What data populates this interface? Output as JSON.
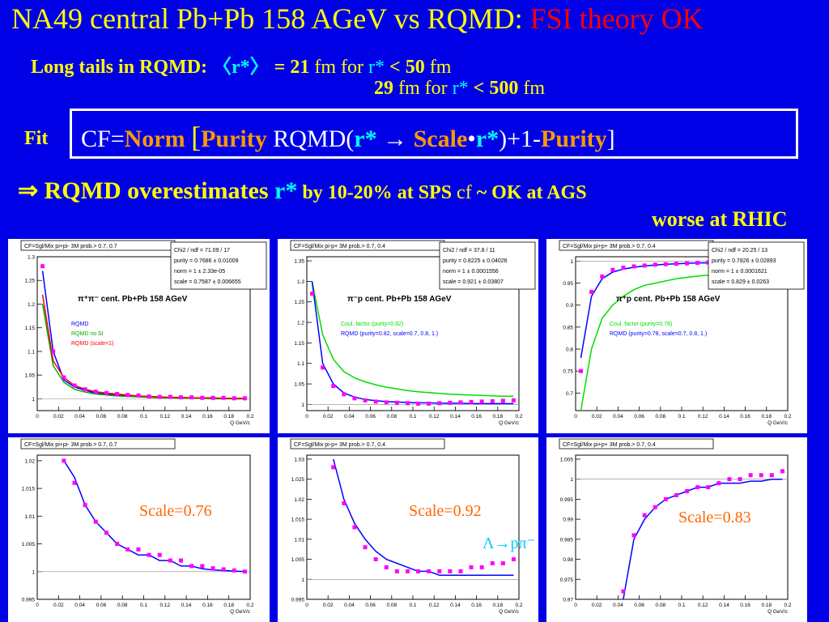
{
  "header": {
    "title_main": "NA49 central Pb+Pb 158 AGeV vs RQMD:",
    "title_fsi": "FSI theory OK",
    "tails_prefix": "Long  tails in RQMD:",
    "tails_mean": "〈r*〉",
    "tails_eq": "= 21",
    "tails_unit": "fm  for",
    "tails_r": "r*",
    "tails_lt": "< 50",
    "tails_fm": "fm",
    "line3_val": "29",
    "line3_for": "fm  for",
    "line3_r": "r*",
    "line3_lt": "< 500",
    "line3_fm": "fm",
    "fit_label": "Fit",
    "formula": {
      "cf": "CF=",
      "norm": "Norm",
      "lb": "[",
      "purity1": "Purity",
      "rqmd": " RQMD(",
      "r1": "r*",
      "arrow": " → ",
      "scale": "Scale",
      "dot": "•",
      "r2": "r*",
      "tail": ")+1-",
      "purity2": "Purity",
      "rb": "]"
    },
    "conclusion": {
      "arrow": "⇒",
      "text": " RQMD overestimates ",
      "r": "r*",
      "by": " by ",
      "pct": "10-20%",
      "at": " at ",
      "sps": "SPS",
      "cf": "  cf ",
      "tilde": " ~ OK",
      "at2": " at ",
      "ags": "AGS"
    },
    "conclusion2": {
      "worse": "worse",
      "at": " at ",
      "rhic": "RHIC"
    }
  },
  "chart_data": [
    {
      "type": "line",
      "panel_title": "CF=Sgl/Mix  pi+pi- 3M prob.> 0.7, 0.7",
      "stats": [
        "Chi2 / ndf = 71.09 / 17",
        "purity  = 0.7686 ± 0.01009",
        "norm   =    1 ± 2.33e-05",
        "scale  = 0.7587 ± 0.006655"
      ],
      "label": "π⁺π⁻  cent. Pb+Pb  158 AGeV",
      "legend": [
        "RQMD",
        "RQMD no SI",
        "RQMD (scale=1)"
      ],
      "xlabel": "Q  GeV/c",
      "xlim": [
        0,
        0.2
      ],
      "ylim": [
        0.975,
        1.3
      ],
      "x_ticks": [
        "0",
        "0.02",
        "0.04",
        "0.06",
        "0.08",
        "0.1",
        "0.12",
        "0.14",
        "0.16",
        "0.18",
        "0.2"
      ],
      "y_ticks": [
        "1",
        "1.05",
        "1.1",
        "1.15",
        "1.2",
        "1.25",
        "1.3"
      ],
      "x": [
        0.005,
        0.015,
        0.025,
        0.035,
        0.045,
        0.055,
        0.065,
        0.075,
        0.085,
        0.095,
        0.105,
        0.115,
        0.125,
        0.135,
        0.145,
        0.155,
        0.165,
        0.175,
        0.185,
        0.195
      ],
      "series": [
        {
          "name": "RQMD",
          "values": [
            1.27,
            1.1,
            1.04,
            1.025,
            1.018,
            1.012,
            1.01,
            1.008,
            1.006,
            1.005,
            1.004,
            1.003,
            1.002,
            1.002,
            1.001,
            1.001,
            1.001,
            1.001,
            1.0,
            1.0
          ]
        },
        {
          "name": "RQMD no SI",
          "values": [
            1.2,
            1.07,
            1.035,
            1.02,
            1.014,
            1.01,
            1.008,
            1.006,
            1.005,
            1.004,
            1.003,
            1.002,
            1.002,
            1.001,
            1.001,
            1.001,
            1.0,
            1.0,
            1.0,
            1.0
          ]
        },
        {
          "name": "RQMD (scale=1)",
          "values": [
            1.22,
            1.08,
            1.045,
            1.028,
            1.02,
            1.015,
            1.012,
            1.01,
            1.008,
            1.006,
            1.005,
            1.004,
            1.003,
            1.003,
            1.002,
            1.002,
            1.002,
            1.001,
            1.001,
            1.001
          ]
        },
        {
          "name": "data",
          "values": [
            1.28,
            1.1,
            1.045,
            1.028,
            1.02,
            1.015,
            1.012,
            1.01,
            1.008,
            1.007,
            1.005,
            1.004,
            1.004,
            1.003,
            1.003,
            1.002,
            1.002,
            1.002,
            1.001,
            1.001
          ]
        }
      ]
    },
    {
      "type": "line",
      "panel_title": "CF=Sgl/Mix  pi-p+ 3M prob.> 0.7, 0.4",
      "stats": [
        "Chi2 / ndf =  37.8 / 11",
        "purity  = 0.8225 ± 0.04026",
        "norm   =    1 ± 0.0001556",
        "scale  = 0.921 ± 0.03807"
      ],
      "label": "π⁻p   cent. Pb+Pb  158 AGeV",
      "legend": [
        "Coul. factor (purity=0.82)",
        "RQMD (purity=0.82, scale=0.7, 0.8, 1.)"
      ],
      "xlabel": "Q  GeV/c",
      "xlim": [
        0,
        0.2
      ],
      "ylim": [
        0.985,
        1.36
      ],
      "x_ticks": [
        "0",
        "0.02",
        "0.04",
        "0.06",
        "0.08",
        "0.1",
        "0.12",
        "0.14",
        "0.16",
        "0.18",
        "0.2"
      ],
      "y_ticks": [
        "1",
        "1.05",
        "1.1",
        "1.15",
        "1.2",
        "1.25",
        "1.3",
        "1.35"
      ],
      "x": [
        0.005,
        0.015,
        0.025,
        0.035,
        0.045,
        0.055,
        0.065,
        0.075,
        0.085,
        0.095,
        0.105,
        0.115,
        0.125,
        0.135,
        0.145,
        0.155,
        0.165,
        0.175,
        0.185,
        0.195
      ],
      "series": [
        {
          "name": "Coul. factor (purity=0.82)",
          "values": [
            1.3,
            1.17,
            1.11,
            1.08,
            1.065,
            1.055,
            1.048,
            1.042,
            1.038,
            1.034,
            1.031,
            1.029,
            1.027,
            1.025,
            1.024,
            1.023,
            1.022,
            1.021,
            1.02,
            1.02
          ]
        },
        {
          "name": "RQMD (purity=0.82, scale=0.7, 0.8, 1.)",
          "values": [
            1.3,
            1.1,
            1.05,
            1.028,
            1.018,
            1.012,
            1.009,
            1.007,
            1.006,
            1.005,
            1.004,
            1.004,
            1.003,
            1.003,
            1.003,
            1.002,
            1.002,
            1.002,
            1.002,
            1.002
          ]
        },
        {
          "name": "data",
          "values": [
            1.27,
            1.09,
            1.045,
            1.025,
            1.015,
            1.01,
            1.007,
            1.005,
            1.004,
            1.003,
            1.002,
            1.002,
            1.003,
            1.004,
            1.005,
            1.006,
            1.007,
            1.008,
            1.009,
            1.01
          ]
        }
      ]
    },
    {
      "type": "line",
      "panel_title": "CF=Sgl/Mix  pi+p+ 3M prob.> 0.7, 0.4",
      "stats": [
        "Chi2 / ndf = 20.25 / 13",
        "purity  = 0.7826 ± 0.02893",
        "norm   =    1 ± 0.0001621",
        "scale  = 0.829 ± 0.0263"
      ],
      "label": "π⁺p   cent. Pb+Pb  158 AGeV",
      "legend": [
        "Coul. factor (purity=0.78)",
        "RQMD (purity=0.78, scale=0.7, 0.8, 1.)"
      ],
      "xlabel": "Q  GeV/c",
      "xlim": [
        0,
        0.2
      ],
      "ylim": [
        0.66,
        1.01
      ],
      "x_ticks": [
        "0",
        "0.02",
        "0.04",
        "0.06",
        "0.08",
        "0.1",
        "0.12",
        "0.14",
        "0.16",
        "0.18",
        "0.2"
      ],
      "y_ticks": [
        "0.7",
        "0.75",
        "0.8",
        "0.85",
        "0.9",
        "0.95",
        "1"
      ],
      "x": [
        0.005,
        0.015,
        0.025,
        0.035,
        0.045,
        0.055,
        0.065,
        0.075,
        0.085,
        0.095,
        0.105,
        0.115,
        0.125,
        0.135,
        0.145,
        0.155,
        0.165,
        0.175,
        0.185,
        0.195
      ],
      "series": [
        {
          "name": "Coul. factor (purity=0.78)",
          "values": [
            0.6,
            0.8,
            0.87,
            0.9,
            0.92,
            0.935,
            0.945,
            0.95,
            0.955,
            0.96,
            0.963,
            0.966,
            0.968,
            0.97,
            0.972,
            0.974,
            0.975,
            0.977,
            0.978,
            0.979
          ]
        },
        {
          "name": "RQMD (purity=0.78, scale=0.7, 0.8, 1.)",
          "values": [
            0.78,
            0.92,
            0.96,
            0.975,
            0.982,
            0.986,
            0.989,
            0.991,
            0.993,
            0.994,
            0.995,
            0.996,
            0.996,
            0.997,
            0.997,
            0.998,
            0.998,
            0.998,
            0.999,
            0.999
          ]
        },
        {
          "name": "data",
          "values": [
            0.75,
            0.93,
            0.965,
            0.98,
            0.985,
            0.988,
            0.99,
            0.992,
            0.993,
            0.994,
            0.995,
            0.996,
            0.997,
            0.997,
            0.998,
            0.999,
            1.0,
            1.001,
            1.002,
            1.003
          ]
        }
      ]
    },
    {
      "type": "line",
      "panel_title": "CF=Sgl/Mix  pi+pi- 3M prob.> 0.7, 0.7",
      "annotation": "Scale=0.76",
      "xlabel": "Q  GeV/c",
      "xlim": [
        0,
        0.2
      ],
      "ylim": [
        0.995,
        1.021
      ],
      "x_ticks": [
        "0",
        "0.02",
        "0.04",
        "0.06",
        "0.08",
        "0.1",
        "0.12",
        "0.14",
        "0.16",
        "0.18",
        "0.2"
      ],
      "y_ticks": [
        "0.995",
        "1",
        "1.005",
        "1.01",
        "1.015",
        "1.02"
      ],
      "x": [
        0.025,
        0.035,
        0.045,
        0.055,
        0.065,
        0.075,
        0.085,
        0.095,
        0.105,
        0.115,
        0.125,
        0.135,
        0.145,
        0.155,
        0.165,
        0.175,
        0.185,
        0.195
      ],
      "series": [
        {
          "name": "RQMD",
          "values": [
            1.02,
            1.017,
            1.012,
            1.009,
            1.007,
            1.005,
            1.004,
            1.003,
            1.003,
            1.002,
            1.002,
            1.001,
            1.001,
            1.0005,
            1.0003,
            1.0002,
            1.0001,
            1.0
          ]
        },
        {
          "name": "data",
          "values": [
            1.02,
            1.016,
            1.012,
            1.009,
            1.007,
            1.005,
            1.004,
            1.004,
            1.003,
            1.003,
            1.002,
            1.002,
            1.001,
            1.001,
            1.0006,
            1.0004,
            1.0002,
            1.0
          ]
        }
      ]
    },
    {
      "type": "line",
      "panel_title": "CF=Sgl/Mix  pi-p+ 3M prob.> 0.7, 0.4",
      "annotation": "Scale=0.92",
      "annotation2": "Λ→pπ⁻",
      "xlabel": "Q  GeV/c",
      "xlim": [
        0,
        0.2
      ],
      "ylim": [
        0.995,
        1.031
      ],
      "x_ticks": [
        "0",
        "0.02",
        "0.04",
        "0.06",
        "0.08",
        "0.1",
        "0.12",
        "0.14",
        "0.16",
        "0.18",
        "0.2"
      ],
      "y_ticks": [
        "0.995",
        "1",
        "1.005",
        "1.01",
        "1.015",
        "1.02",
        "1.025",
        "1.03"
      ],
      "x": [
        0.025,
        0.035,
        0.045,
        0.055,
        0.065,
        0.075,
        0.085,
        0.095,
        0.105,
        0.115,
        0.125,
        0.135,
        0.145,
        0.155,
        0.165,
        0.175,
        0.185,
        0.195
      ],
      "series": [
        {
          "name": "RQMD",
          "values": [
            1.03,
            1.02,
            1.014,
            1.01,
            1.007,
            1.005,
            1.004,
            1.003,
            1.002,
            1.002,
            1.001,
            1.001,
            1.001,
            1.001,
            1.001,
            1.001,
            1.001,
            1.001
          ]
        },
        {
          "name": "data",
          "values": [
            1.028,
            1.019,
            1.013,
            1.008,
            1.005,
            1.003,
            1.002,
            1.002,
            1.002,
            1.002,
            1.002,
            1.002,
            1.002,
            1.003,
            1.003,
            1.004,
            1.004,
            1.005
          ]
        }
      ]
    },
    {
      "type": "line",
      "panel_title": "CF=Sgl/Mix  pi+p+ 3M prob.> 0.7, 0.4",
      "annotation": "Scale=0.83",
      "xlabel": "Q  GeV/c",
      "xlim": [
        0,
        0.2
      ],
      "ylim": [
        0.97,
        1.006
      ],
      "x_ticks": [
        "0",
        "0.02",
        "0.04",
        "0.06",
        "0.08",
        "0.1",
        "0.12",
        "0.14",
        "0.16",
        "0.18",
        "0.2"
      ],
      "y_ticks": [
        "0.97",
        "0.975",
        "0.98",
        "0.985",
        "0.99",
        "0.995",
        "1",
        "1.005"
      ],
      "x": [
        0.045,
        0.055,
        0.065,
        0.075,
        0.085,
        0.095,
        0.105,
        0.115,
        0.125,
        0.135,
        0.145,
        0.155,
        0.165,
        0.175,
        0.185,
        0.195
      ],
      "series": [
        {
          "name": "RQMD",
          "values": [
            0.97,
            0.985,
            0.99,
            0.993,
            0.995,
            0.996,
            0.997,
            0.998,
            0.998,
            0.999,
            0.999,
            0.999,
            0.9995,
            0.9995,
            1.0,
            1.0
          ]
        },
        {
          "name": "data",
          "values": [
            0.972,
            0.986,
            0.991,
            0.993,
            0.995,
            0.996,
            0.997,
            0.998,
            0.998,
            0.999,
            1.0,
            1.0,
            1.001,
            1.001,
            1.001,
            1.002
          ]
        }
      ]
    }
  ]
}
